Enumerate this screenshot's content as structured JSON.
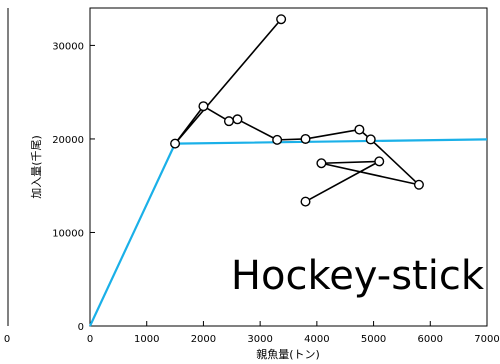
{
  "chart_data": {
    "type": "line",
    "annotation": "Hockey-stick",
    "xlabel": "親魚量(トン)",
    "ylabel": "加入量(千尾)",
    "xlim": [
      0,
      7000
    ],
    "ylim": [
      0,
      34000
    ],
    "x_ticks": [
      "0",
      "1000",
      "2000",
      "3000",
      "4000",
      "5000",
      "6000",
      "7000"
    ],
    "x_tick_values": [
      0,
      1000,
      2000,
      3000,
      4000,
      5000,
      6000,
      7000
    ],
    "y_ticks": [
      "0",
      "10000",
      "20000",
      "30000"
    ],
    "y_tick_values": [
      0,
      10000,
      20000,
      30000
    ],
    "left_partial_tick": "0",
    "grid": false,
    "series": [
      {
        "kind": "hockey-stick-fit",
        "color": "#1ab0e8",
        "points": [
          [
            0,
            0
          ],
          [
            1500,
            19500
          ],
          [
            7000,
            19950
          ]
        ]
      },
      {
        "kind": "observations",
        "color": "#000000",
        "marker": "open-circle",
        "points": [
          [
            3370,
            32800
          ],
          [
            1500,
            19500
          ],
          [
            2000,
            23500
          ],
          [
            2450,
            21900
          ],
          [
            2600,
            22100
          ],
          [
            3300,
            19900
          ],
          [
            3800,
            20000
          ],
          [
            4750,
            21000
          ],
          [
            4950,
            19950
          ],
          [
            5800,
            15100
          ],
          [
            4080,
            17400
          ],
          [
            5100,
            17600
          ],
          [
            3800,
            13300
          ]
        ]
      }
    ]
  }
}
